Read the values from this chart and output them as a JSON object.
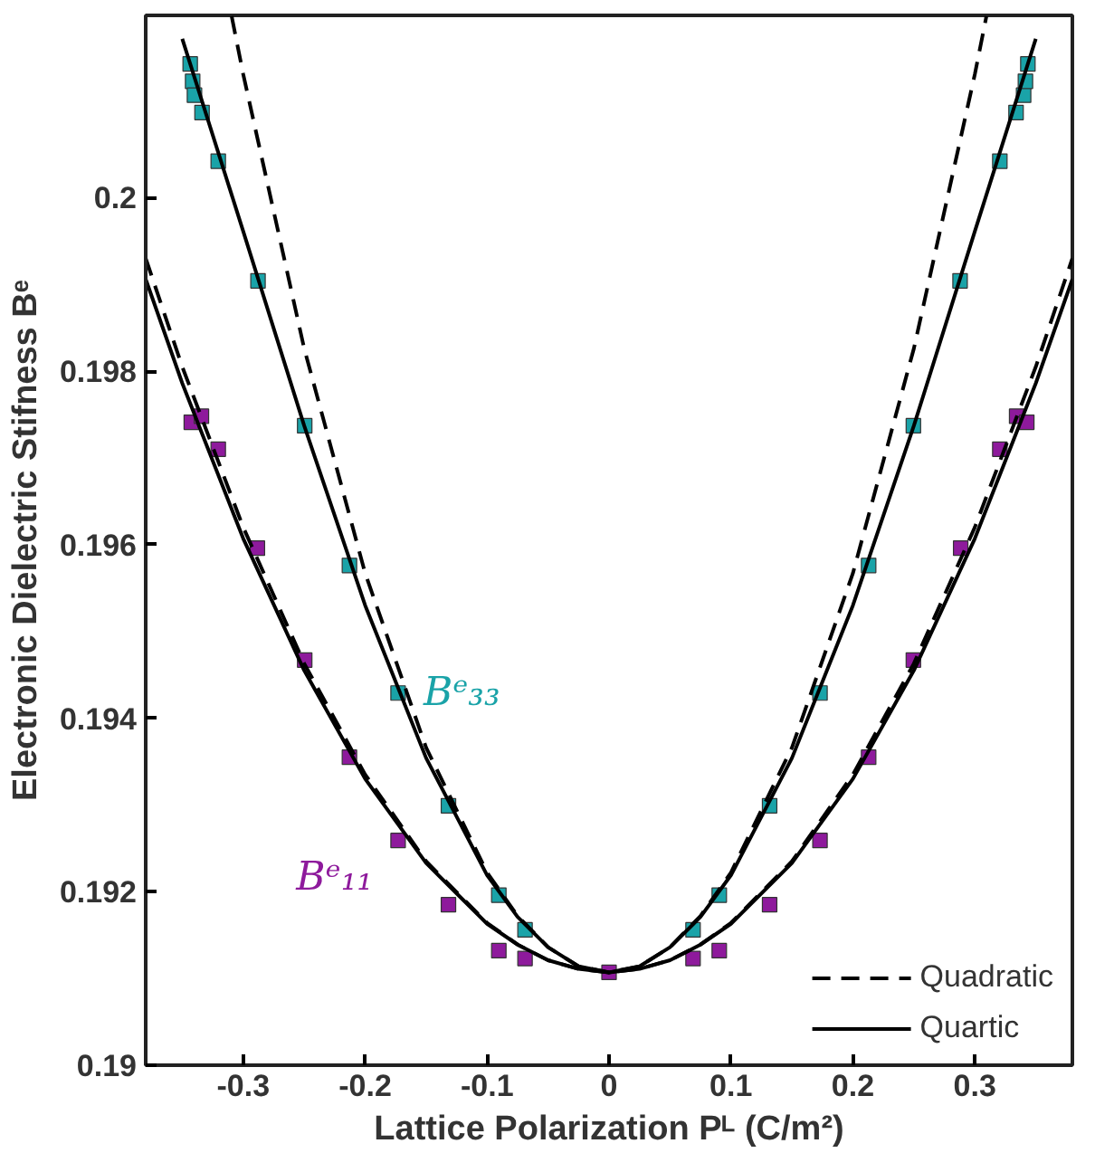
{
  "chart_data": {
    "type": "scatter",
    "xlabel": "Lattice Polarization Pᴸ (C/m²)",
    "ylabel": "Electronic Dielectric Stifness Bᵉ",
    "xlim": [
      -0.38,
      0.38
    ],
    "ylim": [
      0.19,
      0.2021
    ],
    "xticks": [
      -0.3,
      -0.2,
      -0.1,
      0,
      0.1,
      0.2,
      0.3
    ],
    "yticks": [
      0.19,
      0.192,
      0.194,
      0.196,
      0.198,
      0.2
    ],
    "grid": false,
    "legend": "bottom right",
    "series": [
      {
        "name": "Bᵉ₃₃",
        "marker": "square",
        "color": "#1aa3a8",
        "x": [
          -0.3435,
          -0.3415,
          -0.34,
          -0.3338,
          -0.3205,
          -0.2879,
          -0.2496,
          -0.2129,
          -0.173,
          -0.1317,
          -0.0904,
          -0.0689,
          0,
          0.0689,
          0.0904,
          0.1317,
          0.173,
          0.2129,
          0.2496,
          0.2879,
          0.3205,
          0.3338,
          0.34,
          0.3415,
          0.3435
        ],
        "values": [
          0.20154,
          0.20134,
          0.20118,
          0.20098,
          0.20042,
          0.19904,
          0.19737,
          0.19576,
          0.19429,
          0.19299,
          0.19196,
          0.19156,
          null,
          0.19156,
          0.19196,
          0.19299,
          0.19429,
          0.19576,
          0.19737,
          0.19904,
          0.20042,
          0.20098,
          0.20118,
          0.20134,
          0.20154
        ]
      },
      {
        "name": "Bᵉ₁₁",
        "marker": "square",
        "color": "#8e1a9c",
        "x": [
          -0.3426,
          -0.3343,
          -0.3205,
          -0.2884,
          -0.2496,
          -0.2129,
          -0.173,
          -0.1317,
          -0.0904,
          -0.0689,
          0,
          0.0689,
          0.0904,
          0.1317,
          0.173,
          0.2129,
          0.2496,
          0.2884,
          0.3205,
          0.3343,
          0.3426
        ],
        "values": [
          0.19741,
          0.19748,
          0.1971,
          0.19596,
          0.19467,
          0.19355,
          0.19259,
          0.19185,
          0.19132,
          0.19123,
          0.19107,
          0.19123,
          0.19132,
          0.19185,
          0.19259,
          0.19355,
          0.19467,
          0.19596,
          0.1971,
          0.19748,
          0.19741
        ]
      },
      {
        "type": "line",
        "name": "Quadratic",
        "color": "#000000",
        "line_style": "dashed",
        "x": [
          -0.3095,
          -0.3,
          -0.25,
          -0.2,
          -0.15,
          -0.1,
          -0.075,
          -0.05,
          -0.025,
          0,
          0.025,
          0.05,
          0.075,
          0.1,
          0.15,
          0.2,
          0.25,
          0.3,
          0.3095
        ],
        "values": [
          0.20209,
          0.20142,
          0.19826,
          0.19567,
          0.19366,
          0.19222,
          0.19172,
          0.19136,
          0.19114,
          0.19107,
          0.19114,
          0.19136,
          0.19172,
          0.19222,
          0.19366,
          0.19567,
          0.19826,
          0.20142,
          0.20209
        ]
      },
      {
        "type": "line",
        "color": "#000000",
        "line_style": "dashed",
        "x": [
          -0.38,
          -0.35,
          -0.3,
          -0.25,
          -0.2,
          -0.15,
          -0.1,
          -0.075,
          -0.05,
          -0.025,
          0,
          0.025,
          0.05,
          0.075,
          0.1,
          0.15,
          0.2,
          0.25,
          0.3,
          0.35,
          0.38
        ],
        "values": [
          0.1993,
          0.19805,
          0.1962,
          0.19463,
          0.19335,
          0.19235,
          0.19164,
          0.19139,
          0.19121,
          0.19111,
          0.19107,
          0.19111,
          0.19121,
          0.19139,
          0.19164,
          0.19235,
          0.19335,
          0.19463,
          0.1962,
          0.19805,
          0.1993
        ]
      },
      {
        "type": "line",
        "name": "Quartic",
        "color": "#000000",
        "line_style": "solid",
        "x": [
          -0.35,
          -0.3,
          -0.25,
          -0.2,
          -0.15,
          -0.1,
          -0.075,
          -0.05,
          -0.025,
          0,
          0.025,
          0.05,
          0.075,
          0.1,
          0.15,
          0.2,
          0.25,
          0.3,
          0.35
        ],
        "values": [
          0.20183,
          0.19961,
          0.19737,
          0.1953,
          0.19354,
          0.19219,
          0.19171,
          0.19136,
          0.19114,
          0.19107,
          0.19114,
          0.19136,
          0.19171,
          0.19219,
          0.19354,
          0.1953,
          0.19737,
          0.19961,
          0.20183
        ]
      },
      {
        "type": "line",
        "color": "#000000",
        "line_style": "solid",
        "x": [
          -0.38,
          -0.35,
          -0.3,
          -0.25,
          -0.2,
          -0.15,
          -0.1,
          -0.075,
          -0.05,
          -0.025,
          0,
          0.025,
          0.05,
          0.075,
          0.1,
          0.15,
          0.2,
          0.25,
          0.3,
          0.35,
          0.38
        ],
        "values": [
          0.19906,
          0.19786,
          0.19607,
          0.19455,
          0.1933,
          0.19233,
          0.19163,
          0.19139,
          0.19121,
          0.19111,
          0.19107,
          0.19111,
          0.19121,
          0.19139,
          0.19163,
          0.19233,
          0.1933,
          0.19455,
          0.19607,
          0.19786,
          0.19906
        ]
      }
    ]
  }
}
